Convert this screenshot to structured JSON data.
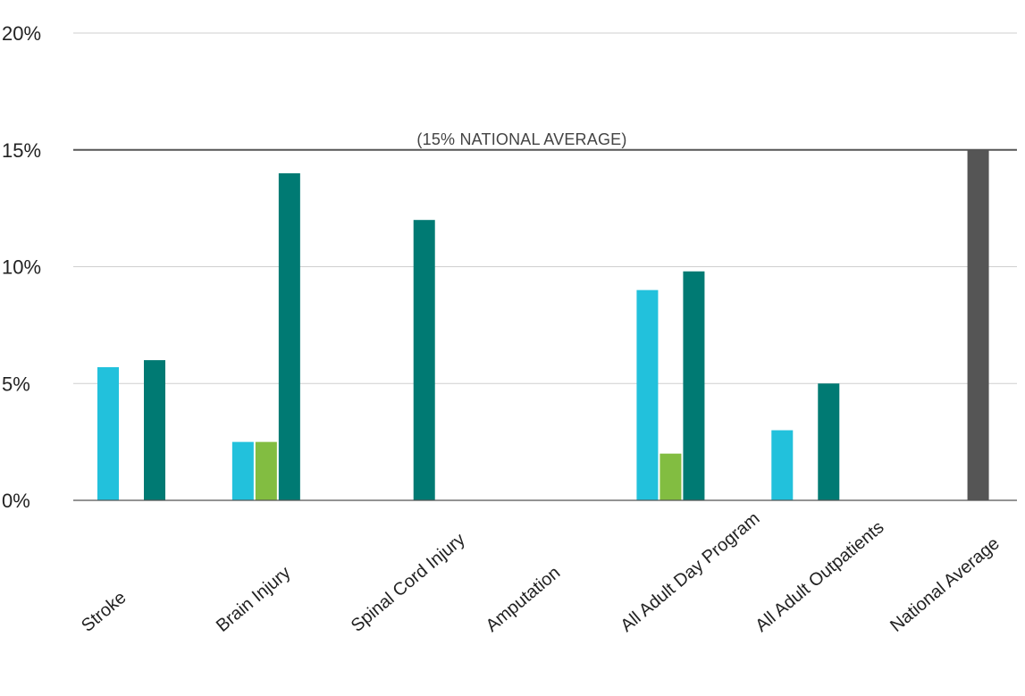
{
  "chart_data": {
    "type": "bar",
    "title": "",
    "xlabel": "",
    "ylabel": "",
    "ylim": [
      0,
      20
    ],
    "y_ticks": [
      "0%",
      "5%",
      "10%",
      "15%",
      "20%"
    ],
    "y_tick_values": [
      0,
      5,
      10,
      15,
      20
    ],
    "grid": true,
    "legend": "none",
    "categories": [
      "Stroke",
      "Brain Injury",
      "Spinal Cord Injury",
      "Amputation",
      "All Adult Day Program",
      "All Adult Outpatients",
      "National Average"
    ],
    "series": [
      {
        "color": "#22c1dc",
        "values": [
          5.7,
          2.5,
          null,
          null,
          9.0,
          3.0,
          null
        ]
      },
      {
        "color": "#82bd41",
        "values": [
          null,
          2.5,
          null,
          null,
          2.0,
          null,
          null
        ]
      },
      {
        "color": "#007a73",
        "values": [
          6.0,
          14.0,
          12.0,
          null,
          9.8,
          5.0,
          null
        ]
      },
      {
        "color": "#555555",
        "values": [
          null,
          null,
          null,
          null,
          null,
          null,
          15.0
        ]
      }
    ],
    "reference_line": {
      "value": 15,
      "label": "(15% NATIONAL AVERAGE)"
    }
  }
}
